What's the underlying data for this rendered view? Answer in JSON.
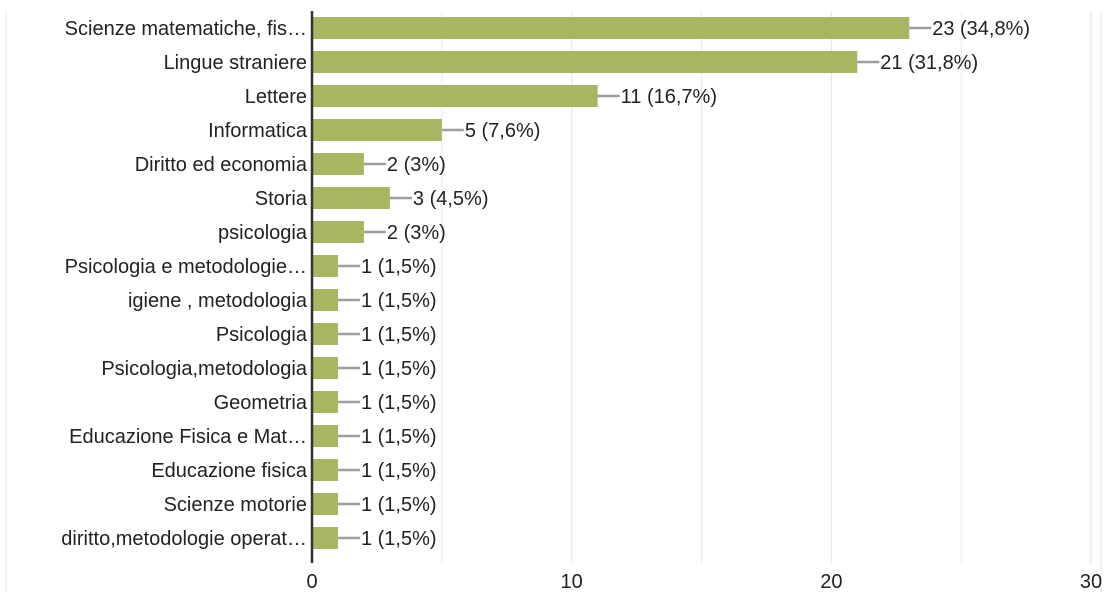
{
  "chart_data": {
    "type": "bar",
    "orientation": "horizontal",
    "categories": [
      "Scienze matematiche, fis…",
      "Lingue straniere",
      "Lettere",
      "Informatica",
      "Diritto ed economia",
      "Storia",
      "psicologia",
      "Psicologia e metodologie…",
      "igiene , metodologia",
      "Psicologia",
      "Psicologia,metodologia",
      "Geometria",
      "Educazione Fisica e Mat…",
      "Educazione fisica",
      "Scienze motorie",
      "diritto,metodologie operat…"
    ],
    "values": [
      23,
      21,
      11,
      5,
      2,
      3,
      2,
      1,
      1,
      1,
      1,
      1,
      1,
      1,
      1,
      1
    ],
    "data_labels": [
      "23 (34,8%)",
      "21 (31,8%)",
      "11 (16,7%)",
      "5 (7,6%)",
      "2 (3%)",
      "3 (4,5%)",
      "2 (3%)",
      "1 (1,5%)",
      "1 (1,5%)",
      "1 (1,5%)",
      "1 (1,5%)",
      "1 (1,5%)",
      "1 (1,5%)",
      "1 (1,5%)",
      "1 (1,5%)",
      "1 (1,5%)"
    ],
    "xlim": [
      0,
      30
    ],
    "x_ticks": [
      "0",
      "10",
      "20",
      "30"
    ],
    "grid": true,
    "colors": {
      "bar": "#a7b660",
      "leader": "#9e9e9e",
      "axis": "#333333",
      "grid": "#e6e6e6",
      "text": "#222222"
    }
  }
}
